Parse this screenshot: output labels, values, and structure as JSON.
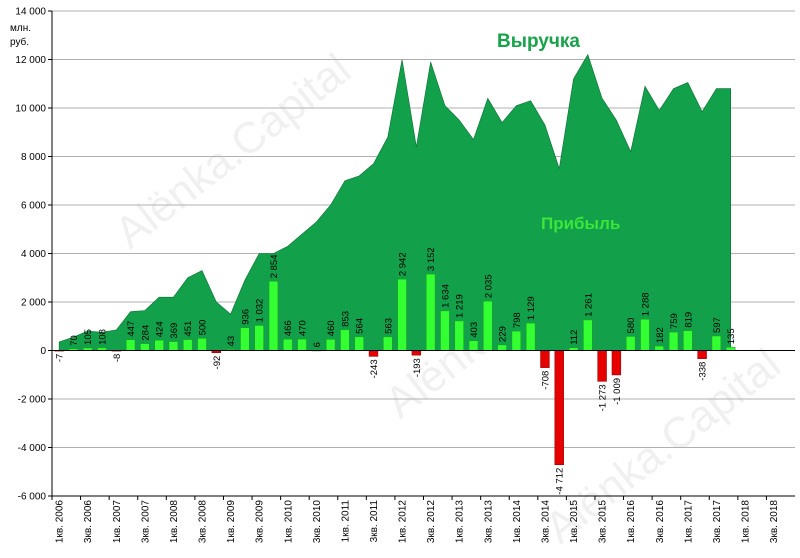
{
  "chart_data": {
    "type": "bar",
    "unit_label": [
      "млн.",
      "руб."
    ],
    "categories": [
      "1кв. 2006",
      "2кв. 2006",
      "3кв. 2006",
      "4кв. 2006",
      "1кв. 2007",
      "2кв. 2007",
      "3кв. 2007",
      "4кв. 2007",
      "1кв. 2008",
      "2кв. 2008",
      "3кв. 2008",
      "4кв. 2008",
      "1кв. 2009",
      "2кв. 2009",
      "3кв. 2009",
      "4кв. 2009",
      "1кв. 2010",
      "2кв. 2010",
      "3кв. 2010",
      "4кв. 2010",
      "1кв. 2011",
      "2кв. 2011",
      "3кв. 2011",
      "4кв. 2011",
      "1кв. 2012",
      "2кв. 2012",
      "3кв. 2012",
      "4кв. 2012",
      "1кв. 2013",
      "2кв. 2013",
      "3кв. 2013",
      "4кв. 2013",
      "1кв. 2014",
      "2кв. 2014",
      "3кв. 2014",
      "4кв. 2014",
      "1кв. 2015",
      "2кв. 2015",
      "3кв. 2015",
      "4кв. 2015",
      "1кв. 2016",
      "2кв. 2016",
      "3кв. 2016",
      "4кв. 2016",
      "1кв. 2017",
      "2кв. 2017",
      "3кв. 2017",
      "4кв. 2017",
      "1кв. 2018",
      "2кв. 2018",
      "3кв. 2018",
      "4кв. 2018"
    ],
    "x_tick_labels": [
      "1кв. 2006",
      "3кв. 2006",
      "1кв. 2007",
      "3кв. 2007",
      "1кв. 2008",
      "3кв. 2008",
      "1кв. 2009",
      "3кв. 2009",
      "1кв. 2010",
      "3кв. 2010",
      "1кв. 2011",
      "3кв. 2011",
      "1кв. 2012",
      "3кв. 2012",
      "1кв. 2013",
      "3кв. 2013",
      "1кв. 2014",
      "3кв. 2014",
      "1кв. 2015",
      "3кв. 2015",
      "1кв. 2016",
      "3кв. 2016",
      "1кв. 2017",
      "3кв. 2017",
      "1кв. 2018",
      "3кв. 2018"
    ],
    "ylim": [
      -6000,
      14000
    ],
    "y_ticks": [
      -6000,
      -4000,
      -2000,
      0,
      2000,
      4000,
      6000,
      8000,
      10000,
      12000,
      14000
    ],
    "y_tick_labels": [
      "-6 000",
      "-4 000",
      "-2 000",
      "0",
      "2 000",
      "4 000",
      "6 000",
      "8 000",
      "10 000",
      "12 000",
      "14 000"
    ],
    "grid": "horizontal",
    "series": [
      {
        "name": "Выручка",
        "type": "area",
        "color": "#13a04a",
        "values": [
          350,
          550,
          800,
          750,
          850,
          1600,
          1650,
          2200,
          2200,
          3000,
          3300,
          2000,
          1500,
          2900,
          4000,
          4000,
          4300,
          4800,
          5300,
          6000,
          7000,
          7200,
          7700,
          8800,
          12000,
          8400,
          11900,
          10100,
          9500,
          8700,
          10400,
          9400,
          10100,
          10300,
          9300,
          7500,
          11200,
          12200,
          10400,
          9500,
          8200,
          10900,
          9900,
          10800,
          11050,
          9850,
          10800,
          10800,
          null,
          null,
          null,
          null
        ]
      },
      {
        "name": "Прибыль",
        "type": "bar",
        "color_positive": "#33ff33",
        "color_negative": "#e60000",
        "values": [
          -7,
          70,
          105,
          108,
          -8,
          447,
          284,
          424,
          369,
          451,
          500,
          -92,
          43,
          936,
          1032,
          2854,
          466,
          470,
          6,
          460,
          853,
          564,
          -243,
          563,
          2942,
          -193,
          3152,
          1634,
          1219,
          403,
          2035,
          229,
          798,
          1129,
          -708,
          -4712,
          112,
          1261,
          -1273,
          -1009,
          580,
          1288,
          182,
          759,
          819,
          -338,
          597,
          135,
          null,
          null,
          null,
          null
        ],
        "labels": [
          "-7",
          "70",
          "105",
          "108",
          "-8",
          "447",
          "284",
          "424",
          "369",
          "451",
          "500",
          "-92",
          "43",
          "936",
          "1 032",
          "2 854",
          "466",
          "470",
          "6",
          "460",
          "853",
          "564",
          "-243",
          "563",
          "2 942",
          "-193",
          "3 152",
          "1 634",
          "1 219",
          "403",
          "2 035",
          "229",
          "798",
          "1 129",
          "-708",
          "-4 712",
          "112",
          "1 261",
          "-1 273",
          "-1 009",
          "580",
          "1 288",
          "182",
          "759",
          "819",
          "-338",
          "597",
          "135",
          null,
          null,
          null,
          null
        ]
      }
    ],
    "annotations": {
      "revenue": "Выручка",
      "profit": "Прибыль"
    },
    "watermark": "Alёnka.Capital"
  },
  "colors": {
    "revenue": "#13a04a",
    "profit_pos": "#33ff33",
    "profit_neg": "#e60000",
    "grid": "#b0b0b0"
  }
}
